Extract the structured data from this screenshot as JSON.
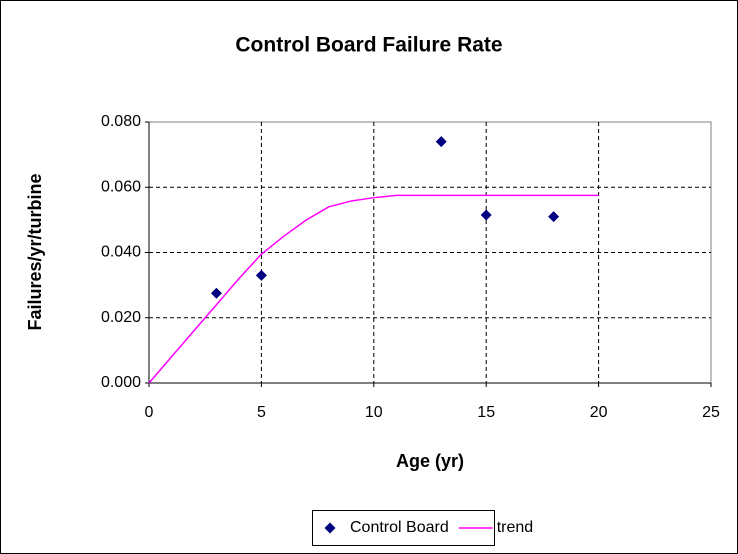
{
  "chart_data": {
    "type": "scatter",
    "title": "Control Board Failure Rate",
    "xlabel": "Age (yr)",
    "ylabel": "Failures/yr/turbine",
    "xlim": [
      0,
      25
    ],
    "xticks": [
      0,
      5,
      10,
      15,
      20,
      25
    ],
    "ylim": [
      0,
      0.08
    ],
    "yticks": [
      {
        "value": 0,
        "label": "0.000"
      },
      {
        "value": 0.02,
        "label": "0.020"
      },
      {
        "value": 0.04,
        "label": "0.040"
      },
      {
        "value": 0.06,
        "label": "0.060"
      },
      {
        "value": 0.08,
        "label": "0.080"
      }
    ],
    "grid": true,
    "legend": "bottom",
    "series": [
      {
        "name": "Control Board",
        "color": "#000080",
        "style": "markers",
        "x": [
          3,
          5,
          13,
          15,
          18
        ],
        "values": [
          0.0275,
          0.033,
          0.074,
          0.0515,
          0.051
        ]
      },
      {
        "name": "trend",
        "color": "#ff00ff",
        "style": "line",
        "x": [
          0,
          1,
          2,
          3,
          4,
          5,
          6,
          7,
          8,
          9,
          10,
          11,
          12,
          13,
          14,
          15,
          16,
          17,
          18,
          19,
          20
        ],
        "values": [
          0,
          0.008,
          0.016,
          0.024,
          0.032,
          0.0395,
          0.045,
          0.05,
          0.054,
          0.0558,
          0.0568,
          0.0575,
          0.0575,
          0.0575,
          0.0575,
          0.0575,
          0.0575,
          0.0575,
          0.0575,
          0.0575,
          0.0575
        ]
      }
    ]
  }
}
